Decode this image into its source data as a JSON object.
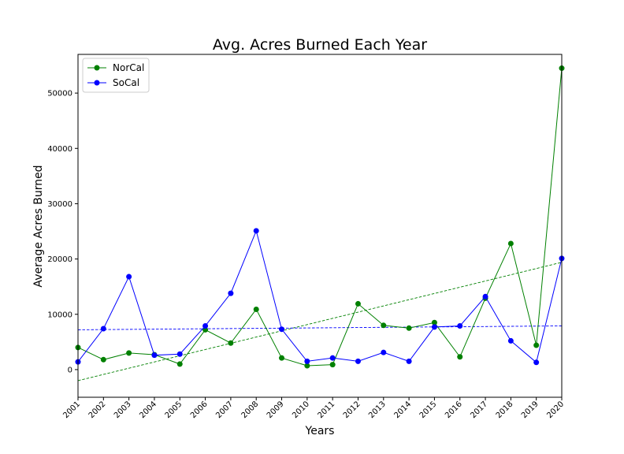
{
  "chart_data": {
    "type": "line",
    "title": "Avg. Acres Burned Each Year",
    "xlabel": "Years",
    "ylabel": "Average Acres Burned",
    "categories": [
      "2001",
      "2002",
      "2003",
      "2004",
      "2005",
      "2006",
      "2007",
      "2008",
      "2009",
      "2010",
      "2011",
      "2012",
      "2013",
      "2014",
      "2015",
      "2016",
      "2017",
      "2018",
      "2019",
      "2020"
    ],
    "ylim": [
      -5000,
      57000
    ],
    "yticks": [
      0,
      10000,
      20000,
      30000,
      40000,
      50000
    ],
    "grid": false,
    "legend_position": "top-left",
    "series": [
      {
        "name": "NorCal",
        "color": "#008000",
        "marker": "circle",
        "values": [
          4000,
          1800,
          3000,
          2700,
          1000,
          7200,
          4800,
          10900,
          2100,
          700,
          900,
          11900,
          8000,
          7500,
          8500,
          2300,
          12900,
          22800,
          4400,
          54500
        ],
        "trendline": {
          "start": -2000,
          "end": 19400
        }
      },
      {
        "name": "SoCal",
        "color": "#0000ff",
        "marker": "circle",
        "values": [
          1400,
          7400,
          16800,
          2600,
          2800,
          7900,
          13800,
          25100,
          7300,
          1500,
          2100,
          1500,
          3100,
          1500,
          7700,
          7900,
          13200,
          5200,
          1300,
          20100
        ],
        "trendline": {
          "start": 7200,
          "end": 7900
        }
      }
    ]
  }
}
